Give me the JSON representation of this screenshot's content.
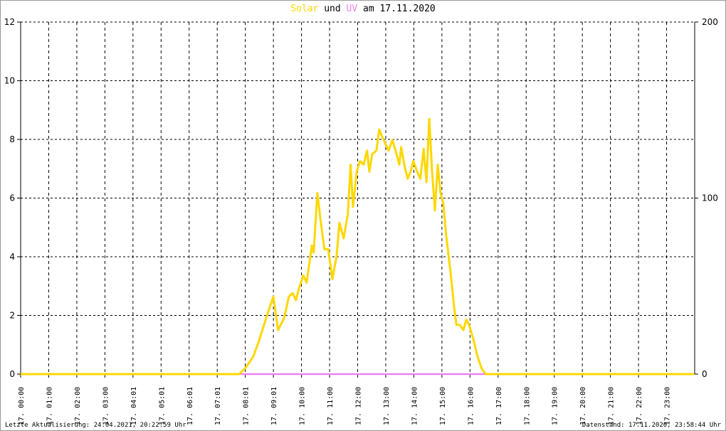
{
  "title": {
    "part1": "Solar",
    "part2": " und ",
    "part3": "UV",
    "part4": " am 17.11.2020"
  },
  "footer": {
    "left": "Letzte Aktualisierung: 24.04.2021, 20:22:59 Uhr",
    "right": "Datenstand: 17.11.2020, 23:58:44 Uhr"
  },
  "chart_data": {
    "type": "line",
    "title": "Solar und UV am 17.11.2020",
    "grid": true,
    "y_left": {
      "range": [
        0,
        12
      ],
      "ticks": [
        "0",
        "2",
        "4",
        "6",
        "8",
        "10",
        "12"
      ]
    },
    "y_right": {
      "range": [
        0,
        200
      ],
      "ticks": [
        "0",
        "100",
        "200"
      ]
    },
    "x_ticks": [
      "17. 00:00",
      "17. 01:00",
      "17. 02:00",
      "17. 03:00",
      "17. 04:01",
      "17. 05:01",
      "17. 06:01",
      "17. 07:01",
      "17. 08:01",
      "17. 09:01",
      "17. 10:00",
      "17. 11:00",
      "17. 12:00",
      "17. 13:00",
      "17. 14:00",
      "17. 15:00",
      "17. 16:00",
      "17. 17:00",
      "17. 18:00",
      "17. 19:00",
      "17. 20:00",
      "17. 21:00",
      "17. 22:00",
      "17. 23:00"
    ],
    "series": [
      {
        "name": "Solar",
        "axis": "right",
        "color": "#ffd700",
        "points": [
          [
            "00:00",
            0
          ],
          [
            "07:47",
            0
          ],
          [
            "08:02",
            4
          ],
          [
            "08:17",
            10
          ],
          [
            "08:28",
            18
          ],
          [
            "08:40",
            28
          ],
          [
            "08:52",
            38
          ],
          [
            "09:00",
            44
          ],
          [
            "09:10",
            25
          ],
          [
            "09:23",
            32
          ],
          [
            "09:33",
            44
          ],
          [
            "09:41",
            46
          ],
          [
            "09:48",
            42
          ],
          [
            "09:56",
            50
          ],
          [
            "10:04",
            56
          ],
          [
            "10:11",
            52
          ],
          [
            "10:22",
            73
          ],
          [
            "10:26",
            69
          ],
          [
            "10:34",
            103
          ],
          [
            "10:41",
            87
          ],
          [
            "10:49",
            71
          ],
          [
            "10:57",
            71
          ],
          [
            "11:06",
            54
          ],
          [
            "11:15",
            67
          ],
          [
            "11:21",
            86
          ],
          [
            "11:30",
            77
          ],
          [
            "11:39",
            91
          ],
          [
            "11:45",
            119
          ],
          [
            "11:50",
            95
          ],
          [
            "11:58",
            115
          ],
          [
            "12:05",
            121
          ],
          [
            "12:13",
            119
          ],
          [
            "12:20",
            127
          ],
          [
            "12:25",
            115
          ],
          [
            "12:31",
            125
          ],
          [
            "12:40",
            127
          ],
          [
            "12:46",
            139
          ],
          [
            "12:52",
            135
          ],
          [
            "12:59",
            131
          ],
          [
            "13:06",
            127
          ],
          [
            "13:14",
            133
          ],
          [
            "13:21",
            127
          ],
          [
            "13:29",
            119
          ],
          [
            "13:33",
            129
          ],
          [
            "13:41",
            117
          ],
          [
            "13:47",
            111
          ],
          [
            "13:53",
            115
          ],
          [
            "13:59",
            121
          ],
          [
            "14:07",
            115
          ],
          [
            "14:14",
            111
          ],
          [
            "14:21",
            128
          ],
          [
            "14:27",
            109
          ],
          [
            "14:33",
            145
          ],
          [
            "14:39",
            115
          ],
          [
            "14:45",
            93
          ],
          [
            "14:51",
            119
          ],
          [
            "14:57",
            103
          ],
          [
            "15:03",
            97
          ],
          [
            "15:09",
            79
          ],
          [
            "15:18",
            59
          ],
          [
            "15:26",
            38
          ],
          [
            "15:31",
            28
          ],
          [
            "15:38",
            28
          ],
          [
            "15:46",
            25
          ],
          [
            "15:52",
            31
          ],
          [
            "15:58",
            28
          ],
          [
            "16:07",
            20
          ],
          [
            "16:16",
            10
          ],
          [
            "16:25",
            3
          ],
          [
            "16:34",
            0
          ],
          [
            "23:59",
            0
          ]
        ]
      },
      {
        "name": "UV",
        "axis": "left",
        "color": "#ee82ee",
        "points": [
          [
            "00:00",
            0
          ],
          [
            "23:59",
            0
          ]
        ]
      }
    ]
  }
}
